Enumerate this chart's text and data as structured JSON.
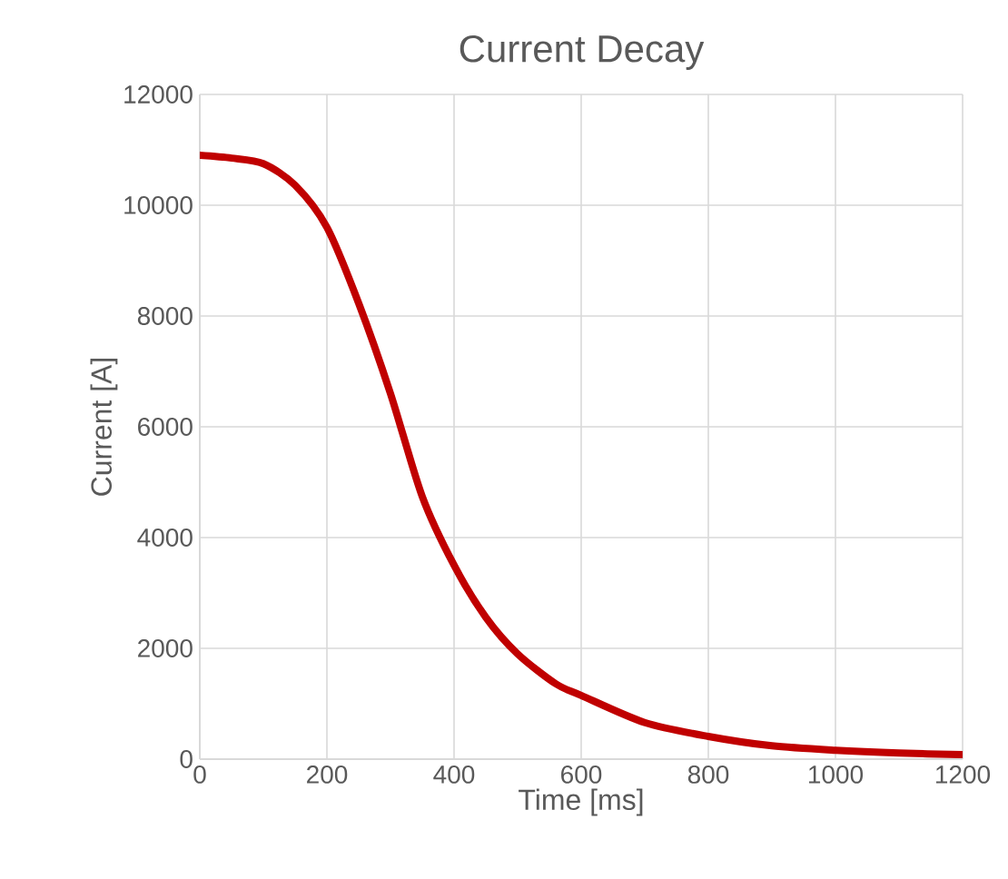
{
  "chart_data": {
    "type": "line",
    "title": "Current Decay",
    "xlabel": "Time [ms]",
    "ylabel": "Current [A]",
    "series": [
      {
        "color": "#c00000",
        "x": [
          0,
          50,
          100,
          150,
          200,
          250,
          300,
          350,
          400,
          450,
          500,
          560,
          600,
          700,
          800,
          900,
          1000,
          1100,
          1200
        ],
        "values": [
          10900,
          10850,
          10750,
          10360,
          9600,
          8230,
          6600,
          4740,
          3500,
          2560,
          1900,
          1360,
          1150,
          660,
          410,
          240,
          160,
          110,
          80
        ]
      }
    ],
    "xlim": [
      0,
      1200
    ],
    "xticks": [
      0,
      200,
      400,
      600,
      800,
      1000,
      1200
    ],
    "ylim": [
      0,
      12000
    ],
    "yticks": [
      0,
      2000,
      4000,
      6000,
      8000,
      10000,
      12000
    ],
    "grid": true,
    "line_style": "solid",
    "marker": "none"
  }
}
